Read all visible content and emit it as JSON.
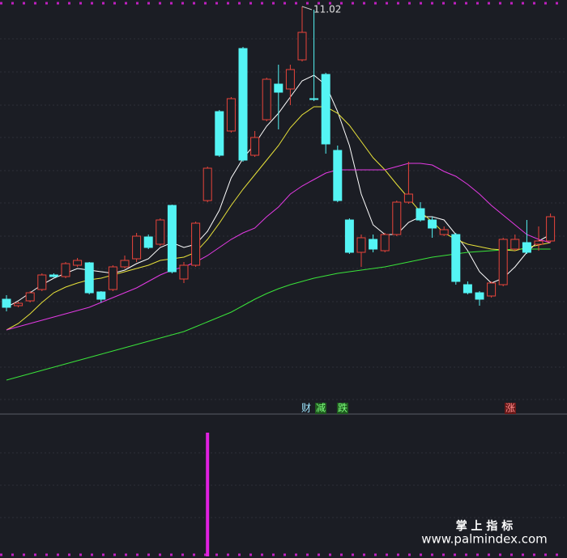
{
  "chart_data": {
    "type": "candlestick",
    "annotation": "11.02",
    "up_color": "#e8443a",
    "down_color": "#54f4f4",
    "ylim": [
      6.4,
      11.1
    ],
    "open": [
      7.4,
      7.32,
      7.38,
      7.52,
      7.7,
      7.68,
      7.82,
      7.85,
      7.49,
      7.52,
      7.8,
      7.9,
      8.17,
      8.08,
      8.56,
      7.65,
      7.82,
      8.62,
      9.72,
      9.48,
      10.5,
      9.18,
      9.62,
      10.06,
      10.0,
      10.36,
      9.88,
      10.18,
      9.24,
      8.38,
      7.98,
      8.14,
      8.0,
      8.2,
      8.6,
      8.52,
      8.38,
      8.2,
      8.2,
      7.58,
      7.48,
      7.44,
      7.58,
      8.02,
      8.1,
      8.08,
      8.12
    ],
    "high": [
      7.45,
      7.37,
      7.5,
      7.72,
      7.72,
      7.86,
      7.91,
      7.86,
      7.5,
      7.82,
      7.94,
      8.22,
      8.2,
      8.4,
      8.57,
      7.86,
      8.36,
      9.04,
      9.74,
      9.9,
      10.52,
      9.48,
      10.14,
      10.3,
      10.3,
      11.02,
      10.98,
      10.2,
      9.3,
      8.4,
      8.2,
      8.2,
      8.22,
      8.62,
      9.1,
      8.6,
      8.42,
      8.3,
      8.22,
      7.62,
      7.5,
      7.62,
      8.16,
      8.2,
      8.38,
      8.3,
      8.46
    ],
    "low": [
      7.25,
      7.3,
      7.36,
      7.5,
      7.67,
      7.66,
      7.8,
      7.46,
      7.36,
      7.5,
      7.78,
      7.86,
      8.02,
      8.06,
      7.72,
      7.6,
      7.8,
      8.6,
      9.16,
      9.46,
      9.1,
      9.16,
      9.6,
      9.5,
      9.8,
      10.34,
      9.85,
      9.2,
      8.6,
      7.96,
      7.8,
      7.98,
      7.98,
      8.18,
      8.58,
      8.36,
      8.16,
      8.18,
      7.58,
      7.46,
      7.32,
      7.42,
      7.56,
      8.0,
      7.96,
      8.0,
      8.1
    ],
    "close": [
      7.3,
      7.35,
      7.48,
      7.7,
      7.68,
      7.84,
      7.88,
      7.48,
      7.4,
      7.8,
      7.88,
      8.18,
      8.04,
      8.38,
      7.74,
      7.82,
      8.34,
      9.02,
      9.18,
      9.88,
      9.12,
      9.4,
      10.12,
      9.96,
      10.24,
      10.7,
      9.88,
      9.32,
      8.62,
      7.98,
      8.16,
      8.02,
      8.2,
      8.6,
      8.7,
      8.38,
      8.28,
      8.26,
      7.62,
      7.48,
      7.4,
      7.6,
      8.14,
      8.14,
      7.98,
      8.12,
      8.42
    ],
    "series": [
      {
        "color": "#ffffff",
        "values": [
          7.3,
          7.38,
          7.48,
          7.58,
          7.66,
          7.72,
          7.78,
          7.76,
          7.74,
          7.72,
          7.76,
          7.84,
          7.9,
          8.04,
          8.1,
          8.04,
          8.08,
          8.24,
          8.5,
          8.9,
          9.14,
          9.32,
          9.54,
          9.7,
          9.9,
          10.1,
          10.17,
          10.05,
          9.72,
          9.3,
          8.7,
          8.32,
          8.2,
          8.2,
          8.35,
          8.42,
          8.42,
          8.38,
          8.2,
          8.0,
          7.74,
          7.6,
          7.66,
          7.8,
          7.98,
          8.12,
          8.2
        ]
      },
      {
        "color": "#e8e23a",
        "values": [
          7.02,
          7.1,
          7.22,
          7.36,
          7.48,
          7.55,
          7.6,
          7.64,
          7.66,
          7.7,
          7.74,
          7.78,
          7.82,
          7.88,
          7.9,
          7.92,
          7.98,
          8.14,
          8.34,
          8.56,
          8.76,
          8.94,
          9.12,
          9.3,
          9.52,
          9.68,
          9.78,
          9.78,
          9.7,
          9.55,
          9.35,
          9.15,
          9.0,
          8.82,
          8.65,
          8.48,
          8.36,
          8.22,
          8.14,
          8.08,
          8.05,
          8.02,
          8.01,
          8.0,
          8.04,
          8.07,
          8.1
        ]
      },
      {
        "color": "#e43ae4",
        "values": [
          7.02,
          7.06,
          7.1,
          7.14,
          7.18,
          7.22,
          7.26,
          7.3,
          7.36,
          7.42,
          7.48,
          7.54,
          7.62,
          7.7,
          7.76,
          7.8,
          7.86,
          7.94,
          8.04,
          8.14,
          8.22,
          8.28,
          8.42,
          8.54,
          8.7,
          8.8,
          8.88,
          8.96,
          9.0,
          9.0,
          9.0,
          9.0,
          9.0,
          9.04,
          9.08,
          9.08,
          9.06,
          8.98,
          8.92,
          8.82,
          8.7,
          8.56,
          8.44,
          8.32,
          8.2,
          8.14,
          8.1
        ]
      },
      {
        "color": "#3ae43a",
        "values": [
          6.4,
          6.44,
          6.48,
          6.52,
          6.56,
          6.6,
          6.64,
          6.68,
          6.72,
          6.76,
          6.8,
          6.84,
          6.88,
          6.92,
          6.96,
          7.0,
          7.06,
          7.12,
          7.18,
          7.24,
          7.32,
          7.4,
          7.47,
          7.53,
          7.58,
          7.62,
          7.66,
          7.69,
          7.72,
          7.74,
          7.76,
          7.78,
          7.8,
          7.83,
          7.86,
          7.89,
          7.92,
          7.94,
          7.96,
          7.98,
          7.99,
          8.0,
          8.01,
          8.02,
          8.02,
          8.02,
          8.02
        ]
      }
    ],
    "signals": [
      "财",
      "减",
      "跌",
      "涨"
    ],
    "indicator": {
      "color": "#e020e0",
      "ylim": [
        0,
        1
      ],
      "values": [
        0,
        0,
        0,
        0,
        0,
        0,
        0,
        0,
        0,
        0,
        0,
        0,
        0,
        0,
        0,
        0,
        0,
        1,
        0,
        0,
        0,
        0,
        0,
        0,
        0,
        0,
        0,
        0,
        0,
        0,
        0,
        0,
        0,
        0,
        0,
        0,
        0,
        0,
        0,
        0,
        0,
        0,
        0,
        0,
        0,
        0,
        0
      ]
    },
    "watermark": [
      "掌 上 指 标",
      "www.palmindex.com"
    ]
  }
}
